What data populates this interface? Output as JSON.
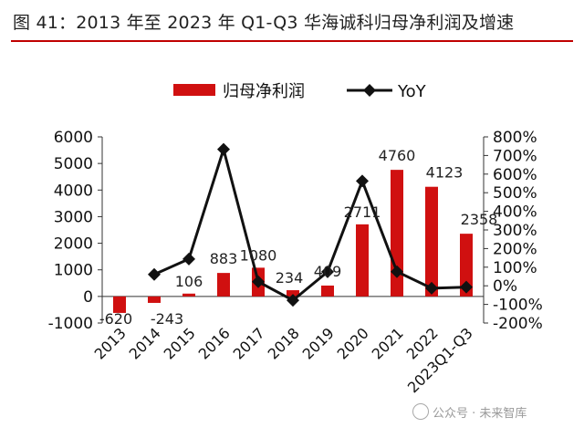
{
  "title": "图 41：2013 年至 2023 年 Q1-Q3 华海诚科归母净利润及增速",
  "watermark": "公众号 · 未来智库",
  "colors": {
    "bar": "#d01010",
    "line": "#111111",
    "rule": "#c00000"
  },
  "chart_data": {
    "type": "bar+line",
    "categories": [
      "2013",
      "2014",
      "2015",
      "2016",
      "2017",
      "2018",
      "2019",
      "2020",
      "2021",
      "2022",
      "2023Q1-Q3"
    ],
    "series": [
      {
        "name": "归母净利润",
        "type": "bar",
        "axis": "left",
        "values": [
          -620,
          -243,
          106,
          883,
          1080,
          234,
          409,
          2711,
          4760,
          4123,
          2358
        ],
        "labels": [
          "-620",
          "-243",
          "106",
          "883",
          "1080",
          "234",
          "409",
          "2711",
          "4760",
          "4123",
          "2358"
        ]
      },
      {
        "name": "YoY",
        "type": "line",
        "axis": "right",
        "unit": "%",
        "values": [
          null,
          61,
          144,
          733,
          22,
          -78,
          75,
          563,
          76,
          -13,
          -7
        ]
      }
    ],
    "yleft": {
      "min": -1000,
      "max": 6000,
      "ticks": [
        "-1000",
        "0",
        "1000",
        "2000",
        "3000",
        "4000",
        "5000",
        "6000"
      ]
    },
    "yright": {
      "min": -200,
      "max": 800,
      "ticks": [
        "-200%",
        "-100%",
        "0%",
        "100%",
        "200%",
        "300%",
        "400%",
        "500%",
        "600%",
        "700%",
        "800%"
      ]
    },
    "legend_position": "top",
    "grid": false
  }
}
